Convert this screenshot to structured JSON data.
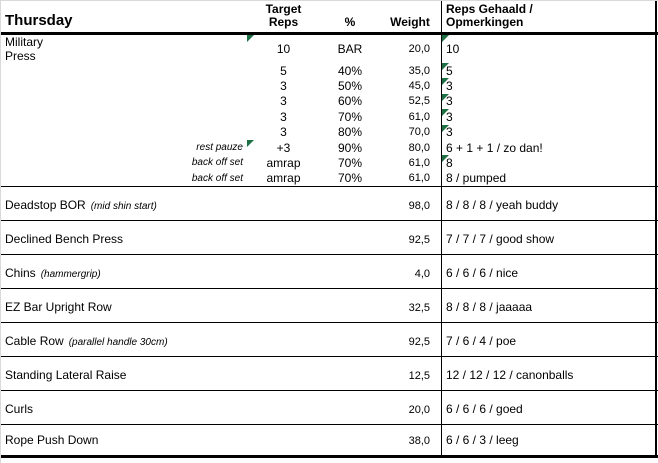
{
  "colors": {
    "border": "#000000",
    "gridline": "#d9d9d9",
    "error_triangle_green": "#1e7145",
    "background": "#ffffff"
  },
  "header": {
    "day": "Thursday",
    "col_target_line1": "Target",
    "col_target_line2": "Reps",
    "col_pct": "%",
    "col_weight": "Weight",
    "col_result_line1": "Reps Gehaald /",
    "col_result_line2": "Opmerkingen"
  },
  "main_block": {
    "exercise": "Military Press",
    "sets": [
      {
        "label": "",
        "reps": "10",
        "pct": "BAR",
        "weight": "20,0",
        "result": "10",
        "flag_reps": true,
        "flag_result": true
      },
      {
        "label": "",
        "reps": "5",
        "pct": "40%",
        "weight": "35,0",
        "result": "5",
        "flag_reps": false,
        "flag_result": true
      },
      {
        "label": "",
        "reps": "3",
        "pct": "50%",
        "weight": "45,0",
        "result": "3",
        "flag_reps": false,
        "flag_result": true
      },
      {
        "label": "",
        "reps": "3",
        "pct": "60%",
        "weight": "52,5",
        "result": "3",
        "flag_reps": false,
        "flag_result": true
      },
      {
        "label": "",
        "reps": "3",
        "pct": "70%",
        "weight": "61,0",
        "result": "3",
        "flag_reps": false,
        "flag_result": true
      },
      {
        "label": "",
        "reps": "3",
        "pct": "80%",
        "weight": "70,0",
        "result": "3",
        "flag_reps": false,
        "flag_result": true
      },
      {
        "label": "rest pauze",
        "reps": "+3",
        "pct": "90%",
        "weight": "80,0",
        "result": "6 + 1 + 1 / zo dan!",
        "flag_reps": true,
        "flag_result": false
      },
      {
        "label": "back off set",
        "reps": "amrap",
        "pct": "70%",
        "weight": "61,0",
        "result": "8",
        "flag_reps": false,
        "flag_result": true
      },
      {
        "label": "back off set",
        "reps": "amrap",
        "pct": "70%",
        "weight": "61,0",
        "result": "8 / pumped",
        "flag_reps": false,
        "flag_result": false
      }
    ]
  },
  "exercise_rows": [
    {
      "name": "Deadstop BOR",
      "note": "(mid shin start)",
      "weight": "98,0",
      "result": "8 / 8 / 8 / yeah buddy"
    },
    {
      "name": "Declined Bench Press",
      "note": "",
      "weight": "92,5",
      "result": "7 / 7 / 7 / good show"
    },
    {
      "name": "Chins",
      "note": "(hammergrip)",
      "weight": "4,0",
      "result": "6 / 6 / 6 / nice"
    },
    {
      "name": "EZ Bar Upright Row",
      "note": "",
      "weight": "32,5",
      "result": "8 / 8 / 8 / jaaaaa"
    },
    {
      "name": "Cable Row",
      "note": "(parallel handle 30cm)",
      "weight": "92,5",
      "result": "7 / 6 / 4 / poe"
    },
    {
      "name": "Standing Lateral Raise",
      "note": "",
      "weight": "12,5",
      "result": "12 / 12 / 12 / canonballs"
    },
    {
      "name": "Curls",
      "note": "",
      "weight": "20,0",
      "result": "6 / 6 / 6 / goed"
    },
    {
      "name": "Rope Push Down",
      "note": "",
      "weight": "38,0",
      "result": "6 / 6 / 3 / leeg"
    }
  ]
}
